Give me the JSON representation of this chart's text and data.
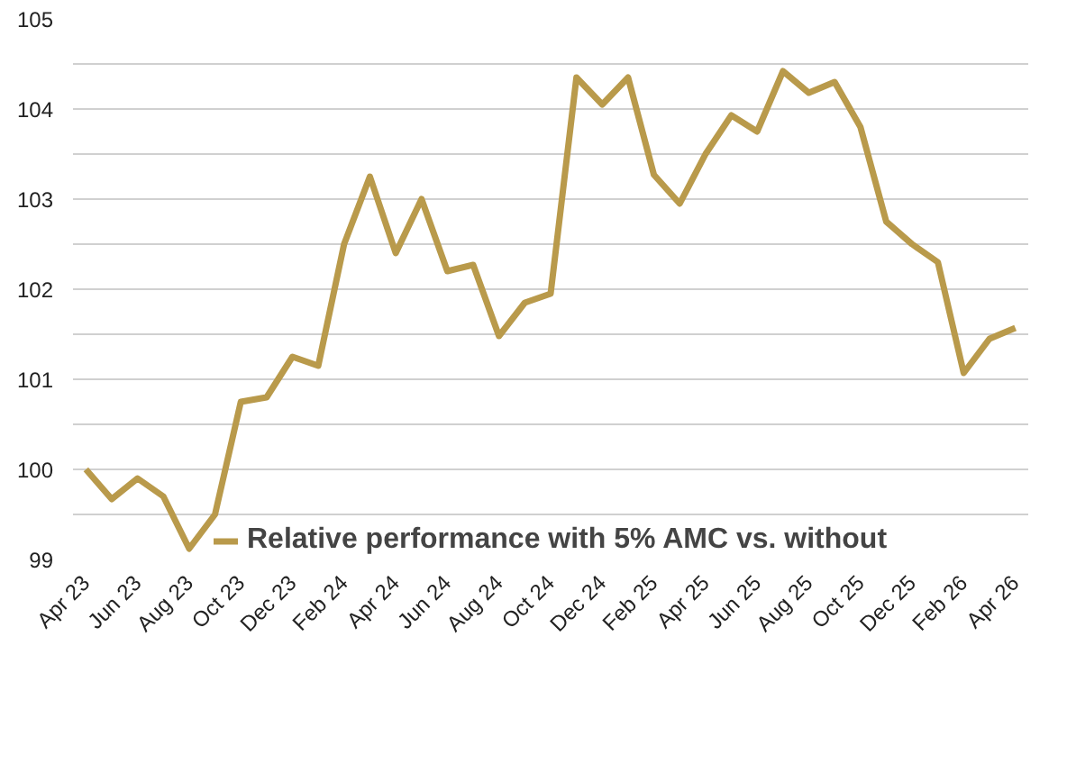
{
  "chart_data": {
    "type": "line",
    "categories": [
      "Apr 23",
      null,
      "Jun 23",
      null,
      "Aug 23",
      null,
      "Oct 23",
      null,
      "Dec 23",
      null,
      "Feb 24",
      null,
      "Apr 24",
      null,
      "Jun 24",
      null,
      "Aug 24",
      null,
      "Oct 24",
      null,
      "Dec 24",
      null,
      "Feb 25",
      null,
      "Apr 25",
      null,
      "Jun 25",
      null,
      "Aug 25",
      null,
      "Oct 25",
      null,
      "Dec 25",
      null,
      "Feb 26",
      null,
      "Apr 26"
    ],
    "series": [
      {
        "name": "Relative performance with 5% AMC vs. without",
        "color": "#b99a4b",
        "values": [
          100.0,
          99.67,
          99.9,
          99.7,
          99.12,
          99.5,
          100.75,
          100.8,
          101.25,
          101.15,
          102.5,
          103.25,
          102.4,
          103.0,
          102.2,
          102.27,
          101.48,
          101.85,
          101.95,
          104.35,
          104.05,
          104.35,
          103.27,
          102.95,
          103.5,
          103.93,
          103.75,
          104.42,
          104.18,
          104.3,
          103.8,
          102.75,
          102.5,
          102.3,
          101.07,
          101.45,
          101.57
        ]
      }
    ],
    "ylim": [
      99,
      105
    ],
    "yticks": [
      99,
      {
        "value": 99.5,
        "label": null
      },
      100,
      {
        "value": 100.5,
        "label": null
      },
      101,
      {
        "value": 101.5,
        "label": null
      },
      102,
      {
        "value": 102.5,
        "label": null
      },
      103,
      {
        "value": 103.5,
        "label": null
      },
      104,
      {
        "value": 104.5,
        "label": null
      },
      105
    ],
    "grid": "y",
    "legend": "bottom",
    "marker": "none",
    "line_style": "solid"
  }
}
